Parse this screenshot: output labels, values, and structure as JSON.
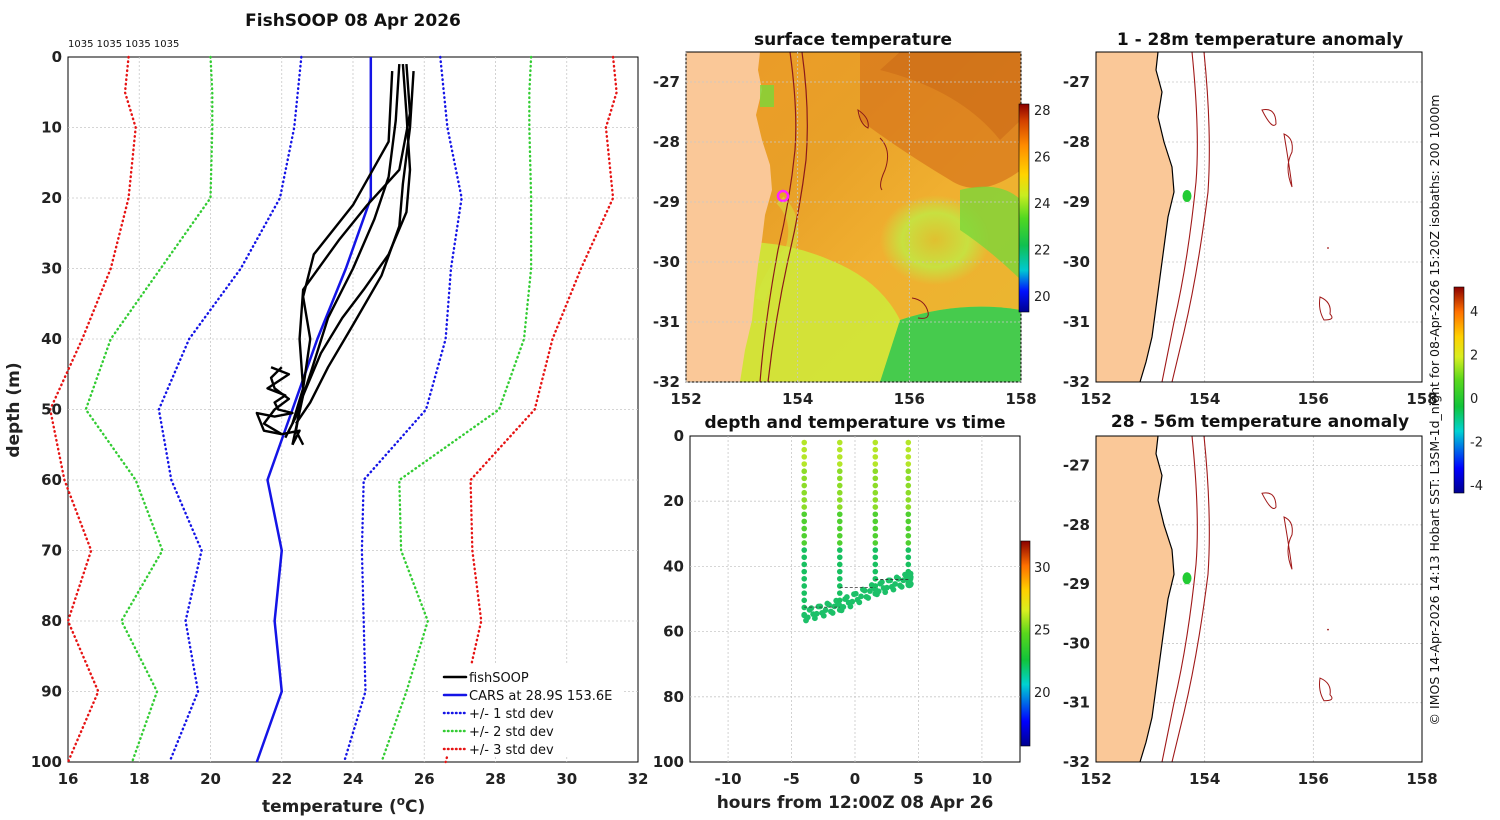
{
  "chart_data": [
    {
      "panel": "profile",
      "type": "line",
      "title": "FishSOOP 08 Apr 2026",
      "top_label": "1035 1035 1035 1035",
      "xlabel": "temperature (",
      "xlabel_unit": "o",
      "xlabel_suffix": "C)",
      "ylabel": "depth (m)",
      "xlim": [
        16,
        32
      ],
      "ylim": [
        0,
        100
      ],
      "xticks": [
        "16",
        "18",
        "20",
        "22",
        "24",
        "26",
        "28",
        "30",
        "32"
      ],
      "yticks": [
        "0",
        "10",
        "20",
        "30",
        "40",
        "50",
        "60",
        "70",
        "80",
        "90",
        "100"
      ],
      "legend": [
        {
          "label": "fishSOOP",
          "color": "#000000",
          "style": "solid"
        },
        {
          "label": "CARS at 28.9S 153.6E",
          "color": "#1414e6",
          "style": "solid"
        },
        {
          "label": "+/- 1 std dev",
          "color": "#1414e6",
          "style": "dotted"
        },
        {
          "label": "+/- 2 std dev",
          "color": "#33cc33",
          "style": "dotted"
        },
        {
          "label": "+/- 3 std dev",
          "color": "#e61414",
          "style": "dotted"
        }
      ],
      "depths": [
        0,
        5,
        10,
        20,
        30,
        40,
        50,
        60,
        70,
        80,
        90,
        100
      ],
      "cars_mean": [
        24.5,
        24.5,
        24.5,
        24.5,
        23.8,
        23.0,
        22.3,
        21.6,
        22.0,
        21.8,
        22.0,
        21.3
      ],
      "std1": [
        1.95,
        2.05,
        2.15,
        2.55,
        2.95,
        3.6,
        3.75,
        2.7,
        2.25,
        2.5,
        2.35,
        2.45
      ],
      "std2": [
        4.5,
        4.45,
        4.45,
        4.5,
        5.2,
        5.8,
        5.8,
        3.7,
        3.35,
        4.3,
        3.5,
        3.5
      ],
      "std3": [
        6.8,
        6.9,
        6.6,
        6.8,
        6.6,
        6.6,
        6.8,
        5.7,
        5.35,
        5.8,
        5.15,
        5.3
      ],
      "series": [
        {
          "name": "fishSOOP cast 1",
          "points": [
            [
              25.5,
              1
            ],
            [
              25.6,
              8
            ],
            [
              25.3,
              16
            ],
            [
              24.4,
              21
            ],
            [
              23.6,
              26
            ],
            [
              22.6,
              33
            ],
            [
              22.5,
              40
            ],
            [
              22.6,
              47
            ],
            [
              22.4,
              53
            ],
            [
              22.6,
              55
            ]
          ]
        },
        {
          "name": "fishSOOP cast 2",
          "points": [
            [
              25.3,
              1
            ],
            [
              25.2,
              9
            ],
            [
              25.0,
              17
            ],
            [
              24.6,
              23
            ],
            [
              24.0,
              30
            ],
            [
              23.3,
              37
            ],
            [
              22.8,
              45
            ],
            [
              22.4,
              51
            ],
            [
              22.1,
              54
            ]
          ]
        },
        {
          "name": "fishSOOP cast 3",
          "points": [
            [
              25.7,
              2
            ],
            [
              25.6,
              10
            ],
            [
              25.4,
              18
            ],
            [
              25.3,
              24
            ],
            [
              24.8,
              31
            ],
            [
              24.0,
              38
            ],
            [
              23.3,
              44
            ],
            [
              22.8,
              49
            ],
            [
              22.4,
              52
            ]
          ]
        },
        {
          "name": "fishSOOP cast 4",
          "points": [
            [
              25.4,
              1
            ],
            [
              25.5,
              8
            ],
            [
              25.6,
              16
            ],
            [
              25.5,
              22
            ],
            [
              25.0,
              28
            ],
            [
              24.3,
              33
            ],
            [
              23.7,
              37
            ],
            [
              23.1,
              42
            ],
            [
              22.6,
              48
            ],
            [
              22.3,
              55
            ]
          ]
        },
        {
          "name": "fishSOOP cast 5",
          "points": [
            [
              25.1,
              2
            ],
            [
              25.0,
              12
            ],
            [
              24.0,
              21
            ],
            [
              22.9,
              28
            ],
            [
              22.6,
              34
            ],
            [
              22.8,
              40
            ],
            [
              22.6,
              47
            ],
            [
              22.3,
              52
            ]
          ]
        },
        {
          "name": "fishSOOP bottom 1",
          "points": [
            [
              21.7,
              44
            ],
            [
              22.2,
              45
            ],
            [
              21.6,
              47
            ],
            [
              22.1,
              48
            ],
            [
              21.8,
              49
            ],
            [
              21.9,
              50
            ],
            [
              22.3,
              50.5
            ],
            [
              21.8,
              51
            ],
            [
              21.3,
              50.5
            ],
            [
              21.5,
              53
            ],
            [
              22.0,
              53.5
            ],
            [
              22.5,
              53
            ],
            [
              22.3,
              55
            ]
          ]
        },
        {
          "name": "fishSOOP bottom 2",
          "points": [
            [
              22.0,
              44
            ],
            [
              21.7,
              45.5
            ],
            [
              21.8,
              47
            ],
            [
              22.2,
              48.5
            ],
            [
              21.8,
              50
            ],
            [
              21.5,
              52
            ],
            [
              22.0,
              53.5
            ]
          ]
        }
      ]
    },
    {
      "panel": "sst_map",
      "type": "heatmap",
      "title": "surface temperature",
      "xlim": [
        152,
        158
      ],
      "ylim": [
        -32,
        -26.5
      ],
      "xticks": [
        "152",
        "154",
        "156",
        "158"
      ],
      "yticks": [
        "-27",
        "-28",
        "-29",
        "-30",
        "-31",
        "-32"
      ],
      "colorbar_ticks": [
        "28",
        "26",
        "24",
        "22",
        "20"
      ]
    },
    {
      "panel": "depth_time",
      "type": "scatter",
      "title": "depth and temperature vs time",
      "xlabel": "hours from 12:00Z 08 Apr 26",
      "xlim": [
        -13,
        13
      ],
      "ylim": [
        0,
        100
      ],
      "xticks": [
        "-10",
        "-5",
        "0",
        "5",
        "10"
      ],
      "yticks": [
        "0",
        "20",
        "40",
        "60",
        "80",
        "100"
      ],
      "colorbar_ticks": [
        "30",
        "25",
        "20"
      ],
      "casts_hours": [
        -4.0,
        -1.2,
        1.6,
        4.2
      ]
    },
    {
      "panel": "anom_1_28",
      "type": "map",
      "title": "1 - 28m temperature anomaly",
      "xlim": [
        152,
        158
      ],
      "ylim": [
        -32,
        -26.5
      ],
      "xticks": [
        "152",
        "154",
        "156",
        "158"
      ],
      "yticks": [
        "-27",
        "-28",
        "-29",
        "-30",
        "-31",
        "-32"
      ]
    },
    {
      "panel": "anom_28_56",
      "type": "map",
      "title": "28 - 56m temperature anomaly",
      "xlim": [
        152,
        158
      ],
      "ylim": [
        -32,
        -26.5
      ],
      "xticks": [
        "152",
        "154",
        "156",
        "158"
      ],
      "yticks": [
        "-27",
        "-28",
        "-29",
        "-30",
        "-31",
        "-32"
      ]
    },
    {
      "panel": "anom_colorbar",
      "type": "colorbar",
      "ticks": [
        "4",
        "2",
        "0",
        "-2",
        "-4"
      ]
    }
  ],
  "side_credit": "© IMOS 14-Apr-2026 14:13 Hobart SST: L3SM-1d_night for 08-Apr-2026 15:20Z isobaths: 200  1000m"
}
